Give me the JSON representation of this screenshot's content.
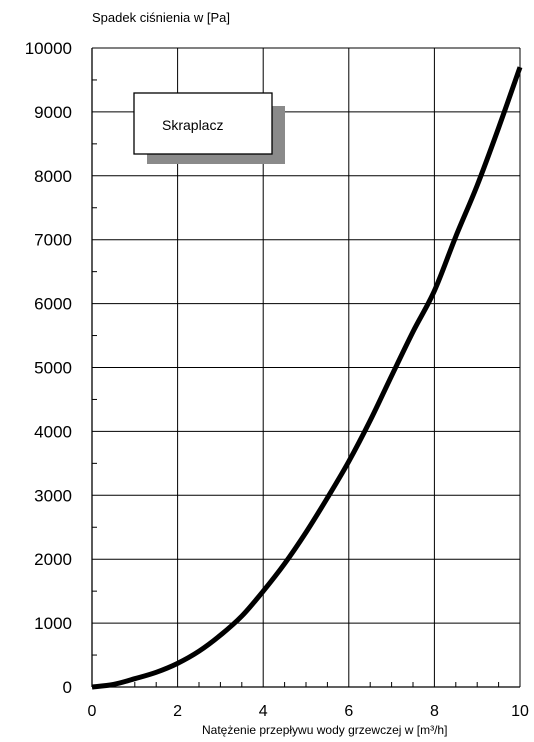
{
  "chart_data": {
    "type": "line",
    "ylabel": "Spadek ciśnienia w [Pa]",
    "xlabel": "Natężenie przepływu wody grzewczej w [m³/h]",
    "legend": {
      "label": "Skraplacz",
      "placement": "top-left"
    },
    "xlim": [
      0,
      10
    ],
    "ylim": [
      0,
      10000
    ],
    "x_ticks": [
      0,
      2,
      4,
      6,
      8,
      10
    ],
    "y_ticks": [
      0,
      1000,
      2000,
      3000,
      4000,
      5000,
      6000,
      7000,
      8000,
      9000,
      10000
    ],
    "grid": true,
    "series": [
      {
        "name": "Skraplacz",
        "color": "#000000",
        "x": [
          0,
          0.5,
          1,
          1.5,
          2,
          2.5,
          3,
          3.5,
          4,
          4.5,
          5,
          5.5,
          6,
          6.5,
          7,
          7.5,
          8,
          8.5,
          9,
          9.5,
          10
        ],
        "y": [
          0,
          40,
          130,
          230,
          370,
          560,
          810,
          1110,
          1500,
          1930,
          2420,
          2960,
          3530,
          4170,
          4870,
          5560,
          6200,
          7050,
          7850,
          8750,
          9700
        ]
      }
    ]
  }
}
